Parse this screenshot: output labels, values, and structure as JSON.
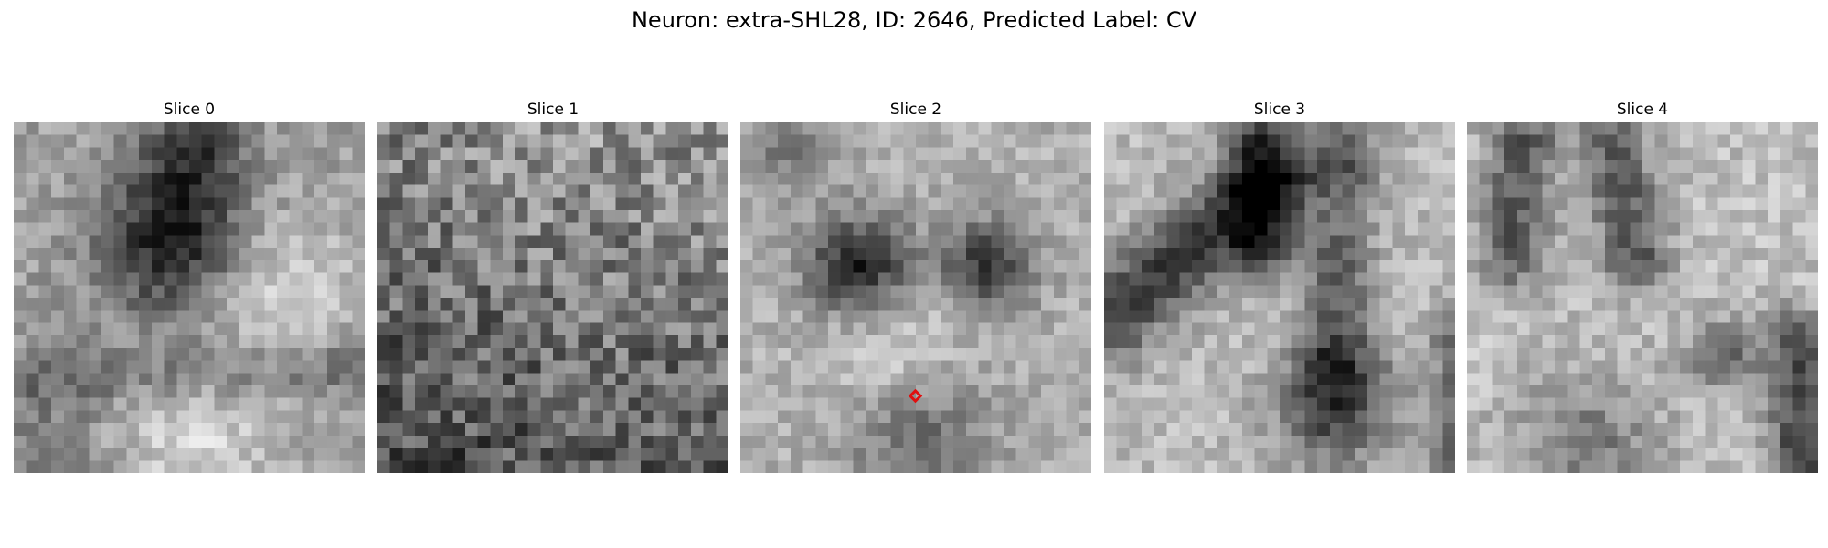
{
  "figure": {
    "title": "Neuron: extra-SHL28, ID: 2646, Predicted Label: CV"
  },
  "panels": [
    {
      "title": "Slice 0",
      "description": "noisy grayscale patch, dark blob upper center, bright curved band lower right"
    },
    {
      "title": "Slice 1",
      "description": "noisy grayscale patch, mostly uniform texture, darker lower left"
    },
    {
      "title": "Slice 2",
      "description": "grayscale patch with two dark blobs center, lighter lower area, with red marker"
    },
    {
      "title": "Slice 3",
      "description": "grayscale patch with dark diagonal bands and dark blob lower center"
    },
    {
      "title": "Slice 4",
      "description": "lighter grayscale patch with dark streaks top and right"
    }
  ],
  "marker": {
    "color": "#e01010",
    "slice": "Slice 2",
    "shape": "diamond"
  }
}
